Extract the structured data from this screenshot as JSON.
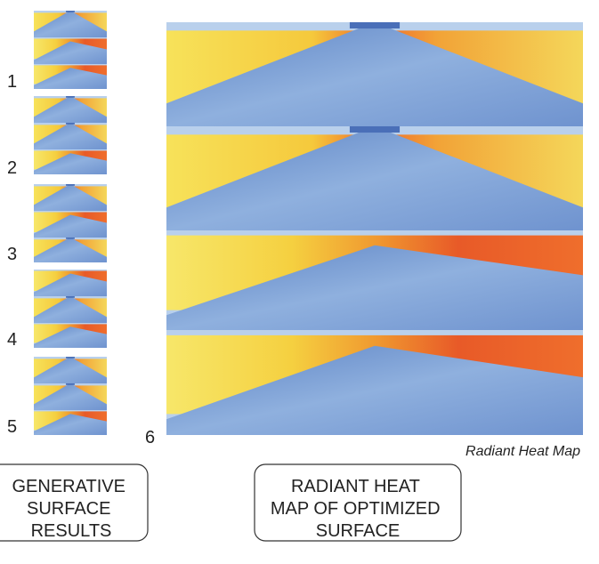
{
  "thumbnails": {
    "labels": [
      "1",
      "2",
      "3",
      "4",
      "5"
    ]
  },
  "main_map": {
    "label": "6",
    "caption": "Radiant Heat Map"
  },
  "left_box": {
    "lines": [
      "GENERATIVE",
      "SURFACE",
      "RESULTS"
    ]
  },
  "right_box": {
    "lines": [
      "RADIANT HEAT",
      "MAP OF OPTIMIZED",
      "SURFACE"
    ]
  }
}
